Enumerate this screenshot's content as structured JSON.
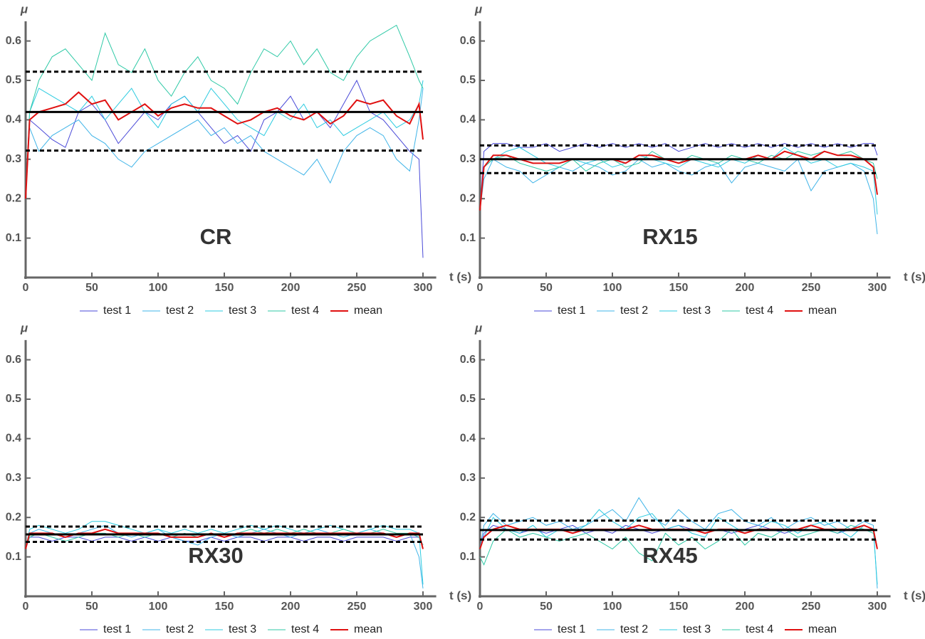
{
  "chart_data": [
    {
      "type": "line",
      "label": "CR",
      "x_label": "t (s)",
      "y_label": "μ",
      "xlim": [
        0,
        310
      ],
      "ylim": [
        0,
        0.65
      ],
      "xticks": [
        0,
        50,
        100,
        150,
        200,
        250,
        300
      ],
      "yticks": [
        0.1,
        0.2,
        0.3,
        0.4,
        0.5,
        0.6
      ],
      "x": [
        0,
        3,
        10,
        20,
        30,
        40,
        50,
        60,
        70,
        80,
        90,
        100,
        110,
        120,
        130,
        140,
        150,
        160,
        170,
        180,
        190,
        200,
        210,
        220,
        230,
        240,
        250,
        260,
        270,
        280,
        290,
        297,
        300
      ],
      "series": [
        {
          "name": "test 1",
          "color": "#4a4ad8",
          "values": [
            0.2,
            0.4,
            0.38,
            0.35,
            0.33,
            0.42,
            0.44,
            0.4,
            0.34,
            0.38,
            0.42,
            0.4,
            0.44,
            0.46,
            0.42,
            0.38,
            0.34,
            0.36,
            0.32,
            0.4,
            0.42,
            0.46,
            0.4,
            0.42,
            0.38,
            0.44,
            0.5,
            0.42,
            0.4,
            0.36,
            0.32,
            0.3,
            0.05
          ]
        },
        {
          "name": "test 2",
          "color": "#3fb4e8",
          "values": [
            0.2,
            0.38,
            0.32,
            0.36,
            0.38,
            0.4,
            0.36,
            0.34,
            0.3,
            0.28,
            0.32,
            0.34,
            0.36,
            0.38,
            0.4,
            0.36,
            0.38,
            0.34,
            0.36,
            0.32,
            0.3,
            0.28,
            0.26,
            0.3,
            0.24,
            0.32,
            0.36,
            0.38,
            0.36,
            0.3,
            0.27,
            0.4,
            0.48
          ]
        },
        {
          "name": "test 3",
          "color": "#2ccbe0",
          "values": [
            0.2,
            0.42,
            0.48,
            0.46,
            0.44,
            0.42,
            0.46,
            0.4,
            0.44,
            0.48,
            0.42,
            0.38,
            0.44,
            0.46,
            0.42,
            0.48,
            0.44,
            0.4,
            0.38,
            0.36,
            0.42,
            0.4,
            0.44,
            0.38,
            0.4,
            0.36,
            0.38,
            0.4,
            0.42,
            0.38,
            0.4,
            0.44,
            0.5
          ]
        },
        {
          "name": "test 4",
          "color": "#2fc9a6",
          "values": [
            0.2,
            0.42,
            0.5,
            0.56,
            0.58,
            0.54,
            0.5,
            0.62,
            0.54,
            0.52,
            0.58,
            0.5,
            0.46,
            0.52,
            0.56,
            0.5,
            0.48,
            0.44,
            0.52,
            0.58,
            0.56,
            0.6,
            0.54,
            0.58,
            0.52,
            0.5,
            0.56,
            0.6,
            0.62,
            0.64,
            0.56,
            0.5,
            0.48
          ]
        },
        {
          "name": "mean",
          "color": "#e01010",
          "values": [
            0.2,
            0.4,
            0.42,
            0.43,
            0.44,
            0.47,
            0.44,
            0.45,
            0.4,
            0.42,
            0.44,
            0.41,
            0.43,
            0.44,
            0.43,
            0.43,
            0.41,
            0.39,
            0.4,
            0.42,
            0.43,
            0.41,
            0.4,
            0.42,
            0.39,
            0.41,
            0.45,
            0.44,
            0.45,
            0.41,
            0.39,
            0.44,
            0.35
          ]
        }
      ],
      "hlines": [
        {
          "value": 0.42,
          "style": "solid"
        },
        {
          "value": 0.522,
          "style": "dashed"
        },
        {
          "value": 0.322,
          "style": "dashed"
        }
      ]
    },
    {
      "type": "line",
      "label": "RX15",
      "x_label": "t (s)",
      "y_label": "μ",
      "xlim": [
        0,
        310
      ],
      "ylim": [
        0,
        0.65
      ],
      "xticks": [
        0,
        50,
        100,
        150,
        200,
        250,
        300
      ],
      "yticks": [
        0.1,
        0.2,
        0.3,
        0.4,
        0.5,
        0.6
      ],
      "x": [
        0,
        3,
        10,
        20,
        30,
        40,
        50,
        60,
        70,
        80,
        90,
        100,
        110,
        120,
        130,
        140,
        150,
        160,
        170,
        180,
        190,
        200,
        210,
        220,
        230,
        240,
        250,
        260,
        270,
        280,
        290,
        297,
        300
      ],
      "series": [
        {
          "name": "test 1",
          "color": "#4a4ad8",
          "values": [
            0.17,
            0.32,
            0.34,
            0.34,
            0.33,
            0.33,
            0.34,
            0.32,
            0.33,
            0.34,
            0.33,
            0.34,
            0.33,
            0.34,
            0.33,
            0.34,
            0.32,
            0.33,
            0.34,
            0.33,
            0.34,
            0.33,
            0.34,
            0.33,
            0.34,
            0.33,
            0.34,
            0.33,
            0.34,
            0.33,
            0.34,
            0.34,
            0.31
          ]
        },
        {
          "name": "test 2",
          "color": "#3fb4e8",
          "values": [
            0.17,
            0.25,
            0.3,
            0.28,
            0.27,
            0.24,
            0.26,
            0.28,
            0.27,
            0.29,
            0.28,
            0.26,
            0.27,
            0.3,
            0.28,
            0.29,
            0.27,
            0.26,
            0.28,
            0.29,
            0.24,
            0.28,
            0.29,
            0.28,
            0.27,
            0.3,
            0.22,
            0.27,
            0.28,
            0.29,
            0.27,
            0.2,
            0.11
          ]
        },
        {
          "name": "test 3",
          "color": "#2ccbe0",
          "values": [
            0.17,
            0.28,
            0.3,
            0.32,
            0.33,
            0.31,
            0.29,
            0.28,
            0.3,
            0.29,
            0.3,
            0.28,
            0.29,
            0.31,
            0.3,
            0.29,
            0.28,
            0.3,
            0.29,
            0.28,
            0.3,
            0.29,
            0.31,
            0.3,
            0.33,
            0.31,
            0.29,
            0.3,
            0.28,
            0.29,
            0.28,
            0.27,
            0.16
          ]
        },
        {
          "name": "test 4",
          "color": "#2fc9a6",
          "values": [
            0.17,
            0.28,
            0.3,
            0.31,
            0.29,
            0.28,
            0.27,
            0.28,
            0.3,
            0.27,
            0.29,
            0.3,
            0.28,
            0.29,
            0.32,
            0.3,
            0.29,
            0.31,
            0.3,
            0.29,
            0.31,
            0.3,
            0.29,
            0.31,
            0.3,
            0.32,
            0.31,
            0.32,
            0.31,
            0.32,
            0.3,
            0.29,
            0.25
          ]
        },
        {
          "name": "mean",
          "color": "#e01010",
          "values": [
            0.17,
            0.28,
            0.31,
            0.31,
            0.3,
            0.29,
            0.29,
            0.29,
            0.3,
            0.3,
            0.3,
            0.3,
            0.29,
            0.31,
            0.31,
            0.3,
            0.29,
            0.3,
            0.3,
            0.3,
            0.3,
            0.3,
            0.31,
            0.3,
            0.32,
            0.31,
            0.3,
            0.32,
            0.31,
            0.31,
            0.3,
            0.28,
            0.21
          ]
        }
      ],
      "hlines": [
        {
          "value": 0.3,
          "style": "solid"
        },
        {
          "value": 0.335,
          "style": "dashed"
        },
        {
          "value": 0.265,
          "style": "dashed"
        }
      ]
    },
    {
      "type": "line",
      "label": "RX30",
      "x_label": "t (s)",
      "y_label": "μ",
      "xlim": [
        0,
        310
      ],
      "ylim": [
        0,
        0.65
      ],
      "xticks": [
        0,
        50,
        100,
        150,
        200,
        250,
        300
      ],
      "yticks": [
        0.1,
        0.2,
        0.3,
        0.4,
        0.5,
        0.6
      ],
      "x": [
        0,
        3,
        10,
        20,
        30,
        40,
        50,
        60,
        70,
        80,
        90,
        100,
        110,
        120,
        130,
        140,
        150,
        160,
        170,
        180,
        190,
        200,
        210,
        220,
        230,
        240,
        250,
        260,
        270,
        280,
        290,
        297,
        300
      ],
      "series": [
        {
          "name": "test 1",
          "color": "#4a4ad8",
          "values": [
            0.12,
            0.15,
            0.15,
            0.14,
            0.15,
            0.15,
            0.14,
            0.15,
            0.15,
            0.14,
            0.15,
            0.14,
            0.15,
            0.14,
            0.14,
            0.15,
            0.14,
            0.15,
            0.15,
            0.14,
            0.15,
            0.15,
            0.14,
            0.15,
            0.15,
            0.14,
            0.15,
            0.15,
            0.15,
            0.14,
            0.15,
            0.15,
            0.13
          ]
        },
        {
          "name": "test 2",
          "color": "#3fb4e8",
          "values": [
            0.12,
            0.16,
            0.17,
            0.16,
            0.15,
            0.16,
            0.17,
            0.18,
            0.16,
            0.15,
            0.16,
            0.17,
            0.15,
            0.14,
            0.13,
            0.15,
            0.16,
            0.15,
            0.16,
            0.17,
            0.16,
            0.15,
            0.16,
            0.17,
            0.16,
            0.15,
            0.16,
            0.17,
            0.16,
            0.15,
            0.16,
            0.1,
            0.02
          ]
        },
        {
          "name": "test 3",
          "color": "#2ccbe0",
          "values": [
            0.12,
            0.17,
            0.18,
            0.17,
            0.16,
            0.17,
            0.19,
            0.19,
            0.18,
            0.17,
            0.16,
            0.17,
            0.16,
            0.17,
            0.16,
            0.17,
            0.16,
            0.17,
            0.18,
            0.17,
            0.18,
            0.17,
            0.16,
            0.17,
            0.18,
            0.17,
            0.16,
            0.17,
            0.18,
            0.17,
            0.17,
            0.16,
            0.03
          ]
        },
        {
          "name": "test 4",
          "color": "#2fc9a6",
          "values": [
            0.12,
            0.15,
            0.16,
            0.15,
            0.14,
            0.15,
            0.16,
            0.16,
            0.15,
            0.16,
            0.15,
            0.16,
            0.15,
            0.16,
            0.15,
            0.16,
            0.15,
            0.16,
            0.17,
            0.16,
            0.17,
            0.16,
            0.17,
            0.16,
            0.16,
            0.17,
            0.16,
            0.16,
            0.17,
            0.16,
            0.16,
            0.15,
            0.13
          ]
        },
        {
          "name": "mean",
          "color": "#e01010",
          "values": [
            0.12,
            0.16,
            0.16,
            0.16,
            0.15,
            0.16,
            0.16,
            0.17,
            0.16,
            0.16,
            0.16,
            0.16,
            0.15,
            0.15,
            0.15,
            0.16,
            0.15,
            0.16,
            0.16,
            0.16,
            0.16,
            0.16,
            0.16,
            0.16,
            0.16,
            0.16,
            0.16,
            0.16,
            0.16,
            0.15,
            0.16,
            0.16,
            0.12
          ]
        }
      ],
      "hlines": [
        {
          "value": 0.157,
          "style": "solid"
        },
        {
          "value": 0.177,
          "style": "dashed"
        },
        {
          "value": 0.138,
          "style": "dashed"
        }
      ]
    },
    {
      "type": "line",
      "label": "RX45",
      "x_label": "t (s)",
      "y_label": "μ",
      "xlim": [
        0,
        310
      ],
      "ylim": [
        0,
        0.65
      ],
      "xticks": [
        0,
        50,
        100,
        150,
        200,
        250,
        300
      ],
      "yticks": [
        0.1,
        0.2,
        0.3,
        0.4,
        0.5,
        0.6
      ],
      "x": [
        0,
        3,
        10,
        20,
        30,
        40,
        50,
        60,
        70,
        80,
        90,
        100,
        110,
        120,
        130,
        140,
        150,
        160,
        170,
        180,
        190,
        200,
        210,
        220,
        230,
        240,
        250,
        260,
        270,
        280,
        290,
        297,
        300
      ],
      "series": [
        {
          "name": "test 1",
          "color": "#4a4ad8",
          "values": [
            0.12,
            0.16,
            0.18,
            0.17,
            0.16,
            0.17,
            0.16,
            0.17,
            0.18,
            0.16,
            0.17,
            0.16,
            0.18,
            0.17,
            0.16,
            0.17,
            0.18,
            0.17,
            0.16,
            0.17,
            0.16,
            0.17,
            0.18,
            0.17,
            0.16,
            0.17,
            0.18,
            0.17,
            0.16,
            0.17,
            0.18,
            0.17,
            0.12
          ]
        },
        {
          "name": "test 2",
          "color": "#3fb4e8",
          "values": [
            0.12,
            0.18,
            0.21,
            0.18,
            0.19,
            0.2,
            0.18,
            0.19,
            0.17,
            0.18,
            0.2,
            0.22,
            0.19,
            0.25,
            0.2,
            0.18,
            0.22,
            0.19,
            0.17,
            0.21,
            0.22,
            0.19,
            0.18,
            0.2,
            0.17,
            0.19,
            0.2,
            0.18,
            0.19,
            0.17,
            0.19,
            0.18,
            0.02
          ]
        },
        {
          "name": "test 3",
          "color": "#2ccbe0",
          "values": [
            0.12,
            0.15,
            0.2,
            0.17,
            0.16,
            0.18,
            0.15,
            0.17,
            0.16,
            0.18,
            0.22,
            0.19,
            0.17,
            0.2,
            0.21,
            0.17,
            0.18,
            0.16,
            0.15,
            0.2,
            0.18,
            0.16,
            0.17,
            0.19,
            0.18,
            0.16,
            0.18,
            0.19,
            0.17,
            0.15,
            0.18,
            0.17,
            0.03
          ]
        },
        {
          "name": "test 4",
          "color": "#2fc9a6",
          "values": [
            0.1,
            0.08,
            0.14,
            0.17,
            0.15,
            0.16,
            0.15,
            0.14,
            0.15,
            0.16,
            0.14,
            0.12,
            0.15,
            0.11,
            0.09,
            0.16,
            0.13,
            0.15,
            0.12,
            0.14,
            0.17,
            0.13,
            0.16,
            0.15,
            0.17,
            0.15,
            0.16,
            0.17,
            0.16,
            0.18,
            0.17,
            0.16,
            0.12
          ]
        },
        {
          "name": "mean",
          "color": "#e01010",
          "values": [
            0.12,
            0.15,
            0.17,
            0.18,
            0.17,
            0.17,
            0.17,
            0.17,
            0.16,
            0.17,
            0.17,
            0.17,
            0.17,
            0.18,
            0.17,
            0.17,
            0.17,
            0.17,
            0.16,
            0.17,
            0.17,
            0.16,
            0.17,
            0.17,
            0.17,
            0.17,
            0.18,
            0.17,
            0.17,
            0.17,
            0.18,
            0.17,
            0.12
          ]
        }
      ],
      "hlines": [
        {
          "value": 0.168,
          "style": "solid"
        },
        {
          "value": 0.192,
          "style": "dashed"
        },
        {
          "value": 0.144,
          "style": "dashed"
        }
      ]
    }
  ]
}
